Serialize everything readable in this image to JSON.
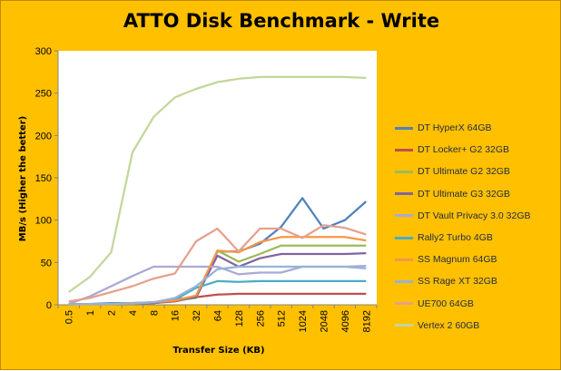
{
  "chart_data": {
    "type": "line",
    "title": "ATTO Disk Benchmark - Write",
    "xlabel": "Transfer Size (KB)",
    "ylabel": "MB/s (Higher the better)",
    "categories": [
      "0.5",
      "1",
      "2",
      "4",
      "8",
      "16",
      "32",
      "64",
      "128",
      "256",
      "512",
      "1024",
      "2048",
      "4096",
      "8192"
    ],
    "ylim": [
      0,
      300
    ],
    "yticks": [
      0,
      50,
      100,
      150,
      200,
      250,
      300
    ],
    "grid": false,
    "legend_position": "right",
    "series": [
      {
        "name": "DT HyperX 64GB",
        "color": "#4f81bd",
        "values": [
          1,
          1,
          2,
          2,
          3,
          6,
          10,
          63,
          63,
          72,
          92,
          126,
          90,
          100,
          122
        ]
      },
      {
        "name": "DT Locker+ G2 32GB",
        "color": "#c0504d",
        "values": [
          0.5,
          1,
          1,
          1.5,
          2,
          4,
          9,
          12,
          13,
          13,
          13,
          13,
          13,
          13,
          13
        ]
      },
      {
        "name": "DT Ultimate G2 32GB",
        "color": "#9bbb59",
        "values": [
          0.5,
          1,
          1,
          1.5,
          2,
          5,
          8,
          64,
          51,
          60,
          70,
          70,
          70,
          70,
          70
        ]
      },
      {
        "name": "DT Ultimate G3 32GB",
        "color": "#8064a2",
        "values": [
          0.5,
          1,
          1,
          1.5,
          2,
          5,
          9,
          58,
          45,
          55,
          60,
          60,
          60,
          60,
          61
        ]
      },
      {
        "name": "DT Vault Privacy 3.0 32GB",
        "color": "#a9a9d6",
        "values": [
          1,
          10,
          22,
          34,
          45,
          45,
          45,
          45,
          36,
          38,
          38,
          45,
          45,
          45,
          46
        ]
      },
      {
        "name": "Rally2 Turbo 4GB",
        "color": "#4bacc6",
        "values": [
          0.5,
          1,
          1.5,
          2,
          3,
          6,
          20,
          28,
          27,
          28,
          28,
          28,
          28,
          28,
          28
        ]
      },
      {
        "name": "SS Magnum 64GB",
        "color": "#f79646",
        "values": [
          0.5,
          1,
          1,
          2,
          3,
          5,
          11,
          64,
          62,
          74,
          80,
          80,
          80,
          80,
          76
        ]
      },
      {
        "name": "SS Rage XT 32GB",
        "color": "#95b3d7",
        "values": [
          0.5,
          1,
          1,
          1.5,
          3,
          8,
          22,
          42,
          45,
          45,
          45,
          45,
          45,
          45,
          43
        ]
      },
      {
        "name": "UE700 64GB",
        "color": "#e6a08c",
        "values": [
          4,
          8,
          15,
          22,
          31,
          37,
          75,
          90,
          63,
          90,
          90,
          79,
          94,
          91,
          83
        ]
      },
      {
        "name": "Vertex 2 60GB",
        "color": "#c3d69b",
        "values": [
          15,
          33,
          62,
          180,
          222,
          245,
          255,
          263,
          267,
          269,
          269,
          269,
          269,
          269,
          268
        ]
      }
    ]
  }
}
